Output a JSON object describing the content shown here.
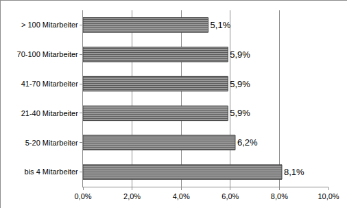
{
  "chart_data": {
    "type": "bar",
    "orientation": "horizontal",
    "categories": [
      "bis 4 Mitarbeiter",
      "5-20 Mitarbeiter",
      "21-40 Mitarbeiter",
      "41-70 Mitarbeiter",
      "70-100 Mitarbeiter",
      "> 100 Mitarbeiter"
    ],
    "values": [
      8.1,
      6.2,
      5.9,
      5.9,
      5.9,
      5.1
    ],
    "value_labels": [
      "8,1%",
      "6,2%",
      "5,9%",
      "5,9%",
      "5,9%",
      "5,1%"
    ],
    "color": "#7f7f7f",
    "xlim": [
      0,
      10
    ],
    "xticks": [
      {
        "value": 0,
        "label": "0,0%"
      },
      {
        "value": 2,
        "label": "2,0%"
      },
      {
        "value": 4,
        "label": "4,0%"
      },
      {
        "value": 6,
        "label": "6,0%"
      },
      {
        "value": 8,
        "label": "8,0%"
      },
      {
        "value": 10,
        "label": "10,0%"
      }
    ],
    "grid": true,
    "data_labels": true
  }
}
